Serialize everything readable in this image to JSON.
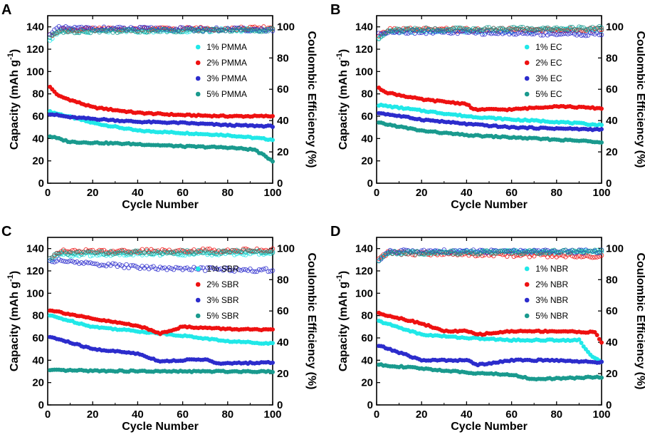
{
  "chart_data": [
    {
      "type": "scatter",
      "panel": "A",
      "xlabel": "Cycle Number",
      "ylabel": "Capacity (mAh g-1)",
      "y2label": "Coulombic Efficiency (%)",
      "xlim": [
        0,
        100
      ],
      "ylim": [
        0,
        150
      ],
      "y2lim": [
        0,
        107
      ],
      "xticks": [
        0,
        20,
        40,
        60,
        80,
        100
      ],
      "yticks": [
        0,
        20,
        40,
        60,
        80,
        100,
        120,
        140
      ],
      "y2ticks": [
        0,
        20,
        40,
        60,
        80,
        100
      ],
      "legend": [
        "1% PMMA",
        "2% PMMA",
        "3% PMMA",
        "5% PMMA"
      ],
      "series": [
        {
          "name": "1% PMMA",
          "color": "#21e8e8",
          "capacity_keys": [
            [
              1,
              64
            ],
            [
              5,
              62
            ],
            [
              20,
              54
            ],
            [
              40,
              47
            ],
            [
              60,
              45
            ],
            [
              80,
              43
            ],
            [
              100,
              39
            ]
          ],
          "ce_keys": [
            [
              1,
              92
            ],
            [
              5,
              97
            ],
            [
              100,
              98
            ]
          ]
        },
        {
          "name": "2% PMMA",
          "color": "#ee1111",
          "capacity_keys": [
            [
              1,
              86
            ],
            [
              5,
              78
            ],
            [
              20,
              68
            ],
            [
              40,
              63
            ],
            [
              60,
              61
            ],
            [
              80,
              60
            ],
            [
              100,
              60
            ]
          ],
          "ce_keys": [
            [
              1,
              94
            ],
            [
              5,
              98
            ],
            [
              100,
              99
            ]
          ]
        },
        {
          "name": "3% PMMA",
          "color": "#2c2ccc",
          "capacity_keys": [
            [
              1,
              62
            ],
            [
              10,
              59
            ],
            [
              40,
              55
            ],
            [
              60,
              54
            ],
            [
              80,
              52
            ],
            [
              100,
              51
            ]
          ],
          "ce_keys": [
            [
              1,
              96
            ],
            [
              5,
              99
            ],
            [
              100,
              98
            ]
          ]
        },
        {
          "name": "5% PMMA",
          "color": "#1a9a8e",
          "capacity_keys": [
            [
              1,
              42
            ],
            [
              10,
              37
            ],
            [
              40,
              35
            ],
            [
              60,
              33
            ],
            [
              80,
              32
            ],
            [
              92,
              30
            ],
            [
              100,
              20
            ]
          ],
          "ce_keys": [
            [
              1,
              93
            ],
            [
              5,
              97
            ],
            [
              100,
              98
            ]
          ]
        }
      ]
    },
    {
      "type": "scatter",
      "panel": "B",
      "xlabel": "Cycle Number",
      "ylabel": "Capacity (mAh g-1)",
      "y2label": "Coulombic Efficiency (%)",
      "xlim": [
        0,
        100
      ],
      "ylim": [
        0,
        150
      ],
      "y2lim": [
        0,
        107
      ],
      "xticks": [
        0,
        20,
        40,
        60,
        80,
        100
      ],
      "yticks": [
        0,
        20,
        40,
        60,
        80,
        100,
        120,
        140
      ],
      "y2ticks": [
        0,
        20,
        40,
        60,
        80,
        100
      ],
      "legend": [
        "1% EC",
        "2% EC",
        "3% EC",
        "5% EC"
      ],
      "series": [
        {
          "name": "1% EC",
          "color": "#21e8e8",
          "capacity_keys": [
            [
              1,
              70
            ],
            [
              20,
              65
            ],
            [
              40,
              60
            ],
            [
              60,
              57
            ],
            [
              80,
              55
            ],
            [
              100,
              52
            ]
          ],
          "ce_keys": [
            [
              1,
              93
            ],
            [
              5,
              97
            ],
            [
              100,
              98
            ]
          ]
        },
        {
          "name": "2% EC",
          "color": "#ee1111",
          "capacity_keys": [
            [
              1,
              85
            ],
            [
              5,
              81
            ],
            [
              20,
              75
            ],
            [
              40,
              71
            ],
            [
              43,
              66
            ],
            [
              60,
              66
            ],
            [
              80,
              69
            ],
            [
              100,
              67
            ]
          ],
          "ce_keys": [
            [
              1,
              94
            ],
            [
              5,
              98
            ],
            [
              100,
              98
            ]
          ]
        },
        {
          "name": "3% EC",
          "color": "#2c2ccc",
          "capacity_keys": [
            [
              1,
              63
            ],
            [
              20,
              57
            ],
            [
              40,
              53
            ],
            [
              60,
              50
            ],
            [
              80,
              49
            ],
            [
              100,
              48
            ]
          ],
          "ce_keys": [
            [
              1,
              95
            ],
            [
              5,
              97
            ],
            [
              100,
              95
            ]
          ]
        },
        {
          "name": "5% EC",
          "color": "#1a9a8e",
          "capacity_keys": [
            [
              1,
              54
            ],
            [
              20,
              47
            ],
            [
              40,
              43
            ],
            [
              60,
              41
            ],
            [
              80,
              39
            ],
            [
              100,
              37
            ]
          ],
          "ce_keys": [
            [
              1,
              92
            ],
            [
              5,
              98
            ],
            [
              100,
              99
            ]
          ]
        }
      ]
    },
    {
      "type": "scatter",
      "panel": "C",
      "xlabel": "Cycle Number",
      "ylabel": "Capacity (mAh g-1)",
      "y2label": "Coulombic Efficiency (%)",
      "xlim": [
        0,
        100
      ],
      "ylim": [
        0,
        150
      ],
      "y2lim": [
        0,
        107
      ],
      "xticks": [
        0,
        20,
        40,
        60,
        80,
        100
      ],
      "yticks": [
        0,
        20,
        40,
        60,
        80,
        100,
        120,
        140
      ],
      "y2ticks": [
        0,
        20,
        40,
        60,
        80,
        100
      ],
      "legend": [
        "1% SBR",
        "2% SBR",
        "3% SBR",
        "5% SBR"
      ],
      "series": [
        {
          "name": "1% SBR",
          "color": "#21e8e8",
          "capacity_keys": [
            [
              1,
              80
            ],
            [
              20,
              70
            ],
            [
              40,
              66
            ],
            [
              60,
              62
            ],
            [
              80,
              57
            ],
            [
              100,
              55
            ]
          ],
          "ce_keys": [
            [
              1,
              92
            ],
            [
              5,
              96
            ],
            [
              100,
              97
            ]
          ]
        },
        {
          "name": "2% SBR",
          "color": "#ee1111",
          "capacity_keys": [
            [
              1,
              85
            ],
            [
              20,
              77
            ],
            [
              40,
              71
            ],
            [
              50,
              64
            ],
            [
              60,
              70
            ],
            [
              80,
              68
            ],
            [
              100,
              67
            ]
          ],
          "ce_keys": [
            [
              1,
              94
            ],
            [
              5,
              98
            ],
            [
              100,
              99
            ]
          ]
        },
        {
          "name": "3% SBR",
          "color": "#2c2ccc",
          "capacity_keys": [
            [
              1,
              61
            ],
            [
              20,
              50
            ],
            [
              40,
              46
            ],
            [
              50,
              39
            ],
            [
              70,
              41
            ],
            [
              75,
              37
            ],
            [
              100,
              38
            ]
          ],
          "ce_keys": [
            [
              1,
              92
            ],
            [
              5,
              92
            ],
            [
              40,
              88
            ],
            [
              60,
              87
            ],
            [
              100,
              86
            ]
          ]
        },
        {
          "name": "5% SBR",
          "color": "#1a9a8e",
          "capacity_keys": [
            [
              1,
              31
            ],
            [
              50,
              30
            ],
            [
              100,
              30
            ]
          ],
          "ce_keys": [
            [
              1,
              93
            ],
            [
              5,
              97
            ],
            [
              100,
              98
            ]
          ]
        }
      ]
    },
    {
      "type": "scatter",
      "panel": "D",
      "xlabel": "Cycle Number",
      "ylabel": "Capacity (mAh g-1)",
      "y2label": "Coulombic Efficiency (%)",
      "xlim": [
        0,
        100
      ],
      "ylim": [
        0,
        150
      ],
      "y2lim": [
        0,
        107
      ],
      "xticks": [
        0,
        20,
        40,
        60,
        80,
        100
      ],
      "yticks": [
        0,
        20,
        40,
        60,
        80,
        100,
        120,
        140
      ],
      "y2ticks": [
        0,
        20,
        40,
        60,
        80,
        100
      ],
      "legend": [
        "1% NBR",
        "2% NBR",
        "3% NBR",
        "5% NBR"
      ],
      "series": [
        {
          "name": "1% NBR",
          "color": "#21e8e8",
          "capacity_keys": [
            [
              1,
              75
            ],
            [
              20,
              63
            ],
            [
              40,
              60
            ],
            [
              60,
              58
            ],
            [
              90,
              58
            ],
            [
              95,
              45
            ],
            [
              100,
              38
            ]
          ],
          "ce_keys": [
            [
              1,
              93
            ],
            [
              5,
              97
            ],
            [
              100,
              98
            ]
          ]
        },
        {
          "name": "2% NBR",
          "color": "#ee1111",
          "capacity_keys": [
            [
              1,
              82
            ],
            [
              20,
              73
            ],
            [
              30,
              66
            ],
            [
              40,
              66
            ],
            [
              45,
              63
            ],
            [
              60,
              66
            ],
            [
              80,
              66
            ],
            [
              97,
              65
            ],
            [
              100,
              56
            ]
          ],
          "ce_keys": [
            [
              1,
              94
            ],
            [
              5,
              97
            ],
            [
              100,
              95
            ]
          ]
        },
        {
          "name": "3% NBR",
          "color": "#2c2ccc",
          "capacity_keys": [
            [
              1,
              53
            ],
            [
              10,
              47
            ],
            [
              20,
              40
            ],
            [
              40,
              40
            ],
            [
              45,
              36
            ],
            [
              60,
              40
            ],
            [
              80,
              40
            ],
            [
              100,
              38
            ]
          ],
          "ce_keys": [
            [
              1,
              92
            ],
            [
              5,
              98
            ],
            [
              100,
              98
            ]
          ]
        },
        {
          "name": "5% NBR",
          "color": "#1a9a8e",
          "capacity_keys": [
            [
              1,
              36
            ],
            [
              40,
              29
            ],
            [
              60,
              27
            ],
            [
              70,
              23
            ],
            [
              100,
              25
            ]
          ],
          "ce_keys": [
            [
              1,
              93
            ],
            [
              5,
              97
            ],
            [
              100,
              98
            ]
          ]
        }
      ]
    }
  ]
}
